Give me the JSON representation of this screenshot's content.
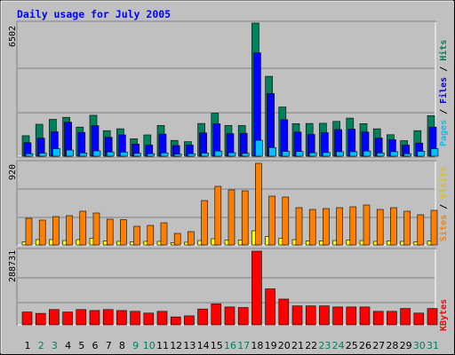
{
  "title": "Daily usage for July 2005",
  "panels": {
    "top": {
      "max_label": "6502",
      "legend": [
        "Pages",
        "Files",
        "Hits"
      ],
      "separator": " / "
    },
    "mid": {
      "max_label": "920",
      "legend": [
        "Sites",
        "Visits"
      ],
      "separator": " / "
    },
    "bot": {
      "max_label": "288731",
      "legend": [
        "KBytes"
      ]
    }
  },
  "colors": {
    "background": "#c0c0c0",
    "hits": "#00805c",
    "files": "#0000ff",
    "pages": "#00c0ff",
    "visits": "#ffff00",
    "sites": "#ff8000",
    "kbytes": "#ff0000",
    "title": "#0000ff",
    "weekend_day": "#00805c",
    "weekday_day": "#000000"
  },
  "chart_data": [
    {
      "type": "bar",
      "title": "Daily usage for July 2005",
      "categories": [
        "1",
        "2",
        "3",
        "4",
        "5",
        "6",
        "7",
        "8",
        "9",
        "10",
        "11",
        "12",
        "13",
        "14",
        "15",
        "16",
        "17",
        "18",
        "19",
        "20",
        "21",
        "22",
        "23",
        "24",
        "25",
        "26",
        "27",
        "28",
        "29",
        "30",
        "31"
      ],
      "weekend_days": [
        "2",
        "3",
        "9",
        "10",
        "16",
        "17",
        "23",
        "24",
        "30",
        "31"
      ],
      "ylim": [
        0,
        6502
      ],
      "series": [
        {
          "name": "Hits",
          "values": [
            1000,
            1560,
            1800,
            1900,
            1420,
            2000,
            1250,
            1340,
            850,
            1040,
            1500,
            770,
            710,
            1600,
            2100,
            1500,
            1500,
            6502,
            3900,
            2400,
            1590,
            1600,
            1610,
            1700,
            1860,
            1590,
            1340,
            1050,
            760,
            1250,
            1980
          ]
        },
        {
          "name": "Files",
          "values": [
            660,
            880,
            1190,
            1660,
            1160,
            1490,
            920,
            1040,
            590,
            540,
            1080,
            520,
            540,
            1140,
            1580,
            1100,
            1120,
            5050,
            3060,
            1780,
            1180,
            1060,
            1150,
            1300,
            1320,
            1180,
            890,
            810,
            540,
            640,
            1420
          ]
        },
        {
          "name": "Pages",
          "values": [
            120,
            150,
            370,
            300,
            160,
            260,
            210,
            200,
            140,
            120,
            160,
            100,
            120,
            150,
            250,
            170,
            140,
            780,
            420,
            230,
            230,
            170,
            180,
            220,
            220,
            250,
            160,
            220,
            120,
            240,
            370
          ]
        }
      ]
    },
    {
      "type": "bar",
      "categories": [
        "1",
        "2",
        "3",
        "4",
        "5",
        "6",
        "7",
        "8",
        "9",
        "10",
        "11",
        "12",
        "13",
        "14",
        "15",
        "16",
        "17",
        "18",
        "19",
        "20",
        "21",
        "22",
        "23",
        "24",
        "25",
        "26",
        "27",
        "28",
        "29",
        "30",
        "31"
      ],
      "weekend_days": [
        "2",
        "3",
        "9",
        "10",
        "16",
        "17",
        "23",
        "24",
        "30",
        "31"
      ],
      "ylim": [
        0,
        920
      ],
      "series": [
        {
          "name": "Visits",
          "values": [
            35,
            60,
            60,
            50,
            60,
            75,
            45,
            40,
            35,
            40,
            40,
            25,
            30,
            50,
            70,
            55,
            55,
            160,
            95,
            75,
            60,
            45,
            45,
            50,
            55,
            50,
            40,
            45,
            40,
            35,
            45
          ]
        },
        {
          "name": "Sites",
          "values": [
            300,
            280,
            320,
            330,
            380,
            360,
            290,
            285,
            210,
            220,
            250,
            130,
            150,
            500,
            660,
            620,
            610,
            920,
            550,
            540,
            420,
            400,
            410,
            420,
            430,
            450,
            400,
            420,
            380,
            340,
            390
          ]
        }
      ]
    },
    {
      "type": "bar",
      "categories": [
        "1",
        "2",
        "3",
        "4",
        "5",
        "6",
        "7",
        "8",
        "9",
        "10",
        "11",
        "12",
        "13",
        "14",
        "15",
        "16",
        "17",
        "18",
        "19",
        "20",
        "21",
        "22",
        "23",
        "24",
        "25",
        "26",
        "27",
        "28",
        "29",
        "30",
        "31"
      ],
      "weekend_days": [
        "2",
        "3",
        "9",
        "10",
        "16",
        "17",
        "23",
        "24",
        "30",
        "31"
      ],
      "ylim": [
        0,
        288731
      ],
      "series": [
        {
          "name": "KBytes",
          "values": [
            50000,
            45000,
            60000,
            50000,
            60000,
            56000,
            60000,
            56000,
            53000,
            46000,
            53000,
            31000,
            35000,
            62000,
            82000,
            70000,
            68000,
            288731,
            141000,
            101000,
            74000,
            74000,
            74000,
            70000,
            70000,
            70000,
            53000,
            53000,
            64000,
            46000,
            64000
          ]
        }
      ]
    }
  ]
}
